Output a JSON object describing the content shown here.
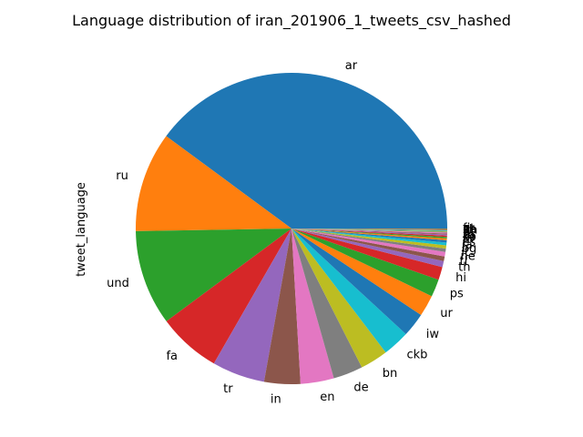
{
  "chart_data": {
    "type": "pie",
    "title": "Language distribution of iran_201906_1_tweets_csv_hashed",
    "ylabel": "tweet_language",
    "start_angle_deg": 0,
    "direction": "counterclockwise",
    "slices": [
      {
        "label": "ar",
        "value": 41.5,
        "color": "#1f77b4"
      },
      {
        "label": "ru",
        "value": 10.8,
        "color": "#ff7f0e"
      },
      {
        "label": "und",
        "value": 10.3,
        "color": "#2ca02c"
      },
      {
        "label": "fa",
        "value": 6.8,
        "color": "#d62728"
      },
      {
        "label": "tr",
        "value": 5.7,
        "color": "#9467bd"
      },
      {
        "label": "in",
        "value": 3.9,
        "color": "#8c564b"
      },
      {
        "label": "en",
        "value": 3.6,
        "color": "#e377c2"
      },
      {
        "label": "de",
        "value": 3.2,
        "color": "#7f7f7f"
      },
      {
        "label": "bn",
        "value": 3.0,
        "color": "#bcbd22"
      },
      {
        "label": "ckb",
        "value": 2.9,
        "color": "#17becf"
      },
      {
        "label": "iw",
        "value": 2.6,
        "color": "#1f77b4"
      },
      {
        "label": "ur",
        "value": 2.3,
        "color": "#ff7f0e"
      },
      {
        "label": "ps",
        "value": 1.9,
        "color": "#2ca02c"
      },
      {
        "label": "hi",
        "value": 1.4,
        "color": "#d62728"
      },
      {
        "label": "th",
        "value": 0.65,
        "color": "#9467bd"
      },
      {
        "label": "tl",
        "value": 0.5,
        "color": "#8c564b"
      },
      {
        "label": "ne",
        "value": 0.5,
        "color": "#e377c2"
      },
      {
        "label": "it",
        "value": 0.35,
        "color": "#7f7f7f"
      },
      {
        "label": "bg",
        "value": 0.35,
        "color": "#bcbd22"
      },
      {
        "label": "ja",
        "value": 0.3,
        "color": "#17becf"
      },
      {
        "label": "es",
        "value": 0.25,
        "color": "#1f77b4"
      },
      {
        "label": "fr",
        "value": 0.2,
        "color": "#ff7f0e"
      },
      {
        "label": "sv",
        "value": 0.15,
        "color": "#2ca02c"
      },
      {
        "label": "ko",
        "value": 0.15,
        "color": "#d62728"
      },
      {
        "label": "ro",
        "value": 0.12,
        "color": "#9467bd"
      },
      {
        "label": "pl",
        "value": 0.1,
        "color": "#8c564b"
      },
      {
        "label": "nl",
        "value": 0.1,
        "color": "#e377c2"
      },
      {
        "label": "ht",
        "value": 0.08,
        "color": "#7f7f7f"
      },
      {
        "label": "pt",
        "value": 0.08,
        "color": "#bcbd22"
      },
      {
        "label": "lt",
        "value": 0.07,
        "color": "#17becf"
      },
      {
        "label": "da",
        "value": 0.06,
        "color": "#1f77b4"
      },
      {
        "label": "zh",
        "value": 0.05,
        "color": "#ff7f0e"
      },
      {
        "label": "et",
        "value": 0.05,
        "color": "#2ca02c"
      },
      {
        "label": "fi",
        "value": 0.04,
        "color": "#d62728"
      }
    ]
  }
}
